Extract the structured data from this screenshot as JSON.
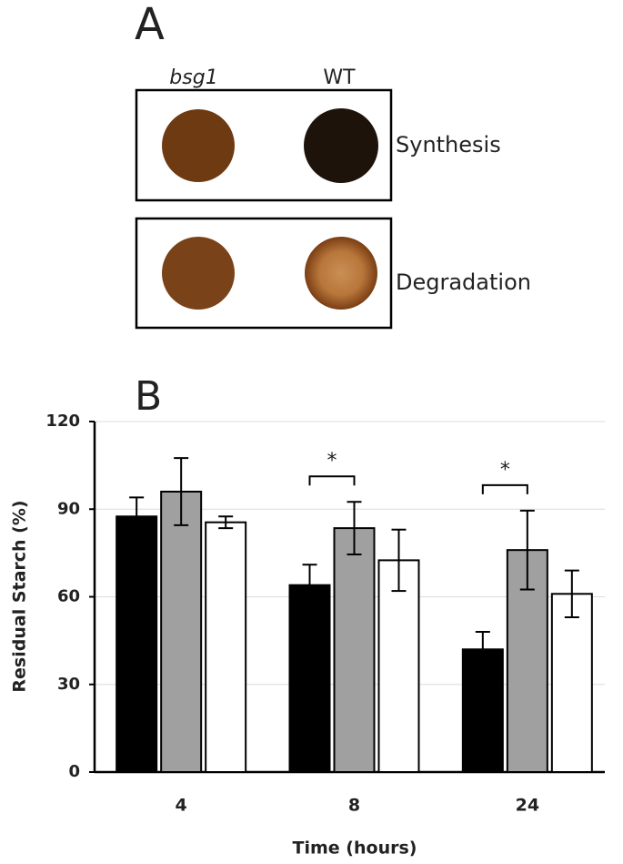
{
  "panel_a": {
    "label": "A",
    "columns": [
      "bsg1",
      "WT"
    ],
    "rows": [
      "Synthesis",
      "Degradation"
    ]
  },
  "chart_data": {
    "type": "bar",
    "label": "B",
    "y_label": "Residual Starch (%)",
    "x_label": "Time (hours)",
    "categories": [
      "4",
      "8",
      "24"
    ],
    "series": [
      {
        "color": "#000000",
        "values": [
          87.5,
          64,
          42
        ],
        "errors": [
          6.5,
          7,
          6
        ]
      },
      {
        "color": "#a0a0a0",
        "values": [
          96,
          83.5,
          76
        ],
        "errors": [
          11.5,
          9,
          13.5
        ]
      },
      {
        "color": "#ffffff",
        "values": [
          85.5,
          72.5,
          61
        ],
        "errors": [
          2,
          10.5,
          8
        ]
      }
    ],
    "ylim": [
      0,
      120
    ],
    "yticks": [
      0,
      30,
      60,
      90,
      120
    ],
    "grid": true,
    "annotations": [
      {
        "text": "*",
        "category": 1
      },
      {
        "text": "*",
        "category": 2
      }
    ]
  }
}
